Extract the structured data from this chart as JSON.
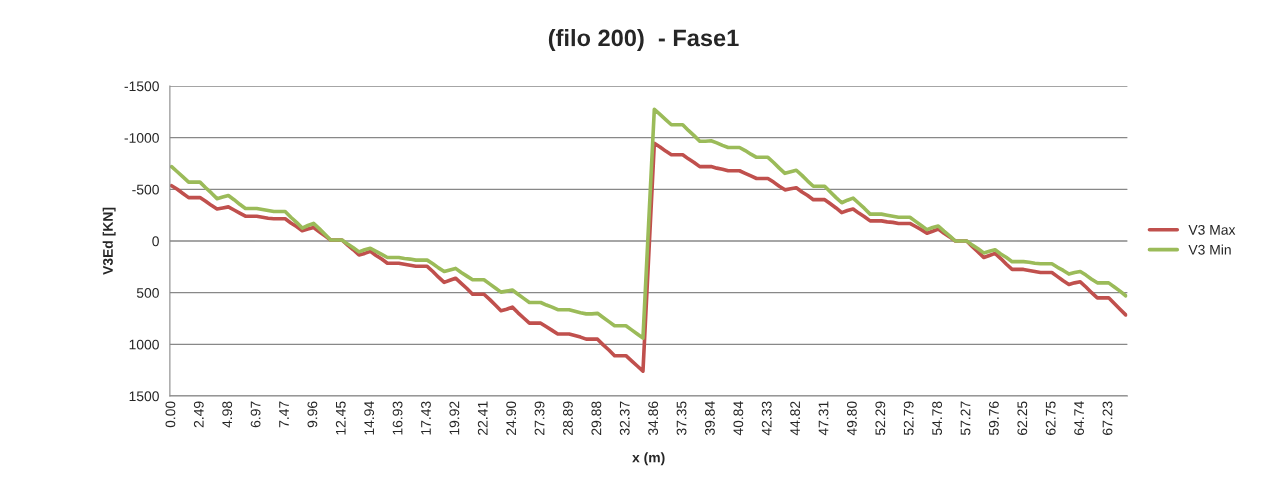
{
  "chart_data": {
    "type": "line",
    "title": "(filo 200)  - Fase1",
    "xlabel": "x (m)",
    "ylabel": "V3Ed [KN]",
    "categories": [
      "0.00",
      null,
      null,
      null,
      null,
      "2.49",
      null,
      null,
      null,
      null,
      "4.98",
      null,
      null,
      null,
      null,
      "6.97",
      null,
      null,
      null,
      null,
      "7.47",
      null,
      null,
      null,
      null,
      "9.96",
      null,
      null,
      null,
      null,
      "12.45",
      null,
      null,
      null,
      null,
      "14.94",
      null,
      null,
      null,
      null,
      "16.93",
      null,
      null,
      null,
      null,
      "17.43",
      null,
      null,
      null,
      null,
      "19.92",
      null,
      null,
      null,
      null,
      "22.41",
      null,
      null,
      null,
      null,
      "24.90",
      null,
      null,
      null,
      null,
      "27.39",
      null,
      null,
      null,
      null,
      "28.89",
      null,
      null,
      null,
      null,
      "29.88",
      null,
      null,
      null,
      null,
      "32.37",
      null,
      null,
      null,
      null,
      "34.86",
      null,
      null,
      null,
      null,
      "37.35",
      null,
      null,
      null,
      null,
      "39.84",
      null,
      null,
      null,
      null,
      "40.84",
      null,
      null,
      null,
      null,
      "42.33",
      null,
      null,
      null,
      null,
      "44.82",
      null,
      null,
      null,
      null,
      "47.31",
      null,
      null,
      null,
      null,
      "49.80",
      null,
      null,
      null,
      null,
      "52.29",
      null,
      null,
      null,
      null,
      "52.79",
      null,
      null,
      null,
      null,
      "54.78",
      null,
      null,
      null,
      null,
      "57.27",
      null,
      null,
      null,
      null,
      "59.76",
      null,
      null,
      null,
      null,
      "62.25",
      null,
      null,
      null,
      null,
      "62.75",
      null,
      null,
      null,
      null,
      "64.74",
      null,
      null,
      null,
      null,
      "67.23",
      null,
      null,
      null
    ],
    "series": [
      {
        "name": "V3 Max",
        "color": "#c0504d",
        "values": [
          -535,
          -500,
          -460,
          -420,
          -420,
          -420,
          -385,
          -345,
          -310,
          -320,
          -330,
          -300,
          -270,
          -240,
          -240,
          -240,
          -230,
          -220,
          -215,
          -215,
          -215,
          -175,
          -140,
          -100,
          -115,
          -130,
          -90,
          -50,
          -10,
          -10,
          -10,
          40,
          85,
          135,
          120,
          100,
          140,
          175,
          215,
          215,
          215,
          225,
          235,
          245,
          245,
          245,
          295,
          350,
          400,
          380,
          360,
          410,
          460,
          515,
          515,
          515,
          565,
          620,
          675,
          660,
          640,
          695,
          745,
          795,
          795,
          795,
          830,
          865,
          900,
          900,
          900,
          915,
          930,
          950,
          950,
          950,
          1005,
          1055,
          1110,
          1110,
          1110,
          1160,
          1210,
          1260,
          160,
          -945,
          -910,
          -870,
          -835,
          -835,
          -835,
          -795,
          -760,
          -720,
          -720,
          -720,
          -705,
          -695,
          -680,
          -680,
          -680,
          -655,
          -630,
          -605,
          -605,
          -605,
          -570,
          -530,
          -495,
          -505,
          -515,
          -475,
          -440,
          -400,
          -400,
          -400,
          -360,
          -320,
          -275,
          -295,
          -310,
          -270,
          -235,
          -195,
          -195,
          -195,
          -185,
          -180,
          -170,
          -170,
          -170,
          -140,
          -110,
          -75,
          -95,
          -115,
          -75,
          -40,
          0,
          0,
          0,
          55,
          105,
          160,
          140,
          120,
          170,
          225,
          275,
          275,
          275,
          285,
          295,
          305,
          305,
          305,
          345,
          385,
          420,
          405,
          395,
          445,
          500,
          550,
          550,
          550,
          605,
          660,
          715
        ]
      },
      {
        "name": "V3 Min",
        "color": "#9bbb59",
        "values": [
          -720,
          -670,
          -620,
          -570,
          -570,
          -570,
          -515,
          -465,
          -410,
          -425,
          -440,
          -400,
          -355,
          -315,
          -315,
          -315,
          -305,
          -295,
          -285,
          -285,
          -285,
          -230,
          -180,
          -125,
          -150,
          -170,
          -120,
          -65,
          -10,
          -10,
          -10,
          30,
          65,
          105,
          85,
          70,
          100,
          130,
          160,
          160,
          160,
          170,
          175,
          185,
          185,
          185,
          220,
          260,
          295,
          280,
          265,
          305,
          340,
          375,
          375,
          375,
          415,
          455,
          495,
          485,
          475,
          515,
          555,
          595,
          595,
          595,
          620,
          640,
          665,
          665,
          665,
          680,
          695,
          705,
          705,
          700,
          740,
          780,
          820,
          820,
          820,
          860,
          900,
          940,
          -170,
          -1275,
          -1225,
          -1175,
          -1125,
          -1125,
          -1125,
          -1070,
          -1020,
          -965,
          -965,
          -970,
          -950,
          -925,
          -905,
          -905,
          -905,
          -875,
          -840,
          -810,
          -810,
          -810,
          -760,
          -705,
          -655,
          -670,
          -685,
          -635,
          -580,
          -530,
          -530,
          -530,
          -475,
          -420,
          -370,
          -395,
          -415,
          -365,
          -315,
          -260,
          -260,
          -260,
          -250,
          -240,
          -230,
          -230,
          -230,
          -190,
          -150,
          -110,
          -130,
          -145,
          -95,
          -50,
          0,
          0,
          0,
          40,
          75,
          115,
          100,
          85,
          125,
          160,
          200,
          200,
          200,
          205,
          215,
          220,
          220,
          220,
          255,
          285,
          320,
          305,
          295,
          330,
          370,
          405,
          405,
          405,
          445,
          485,
          530
        ]
      }
    ],
    "ylim": [
      1500,
      -1500
    ],
    "yticks": [
      -1500,
      -1000,
      -500,
      0,
      500,
      1000,
      1500
    ],
    "grid": "y",
    "legend": "right"
  }
}
